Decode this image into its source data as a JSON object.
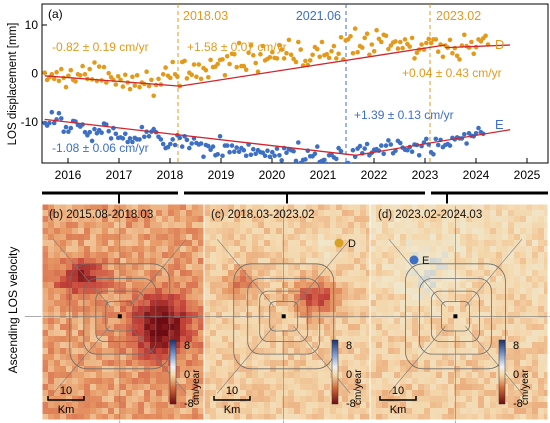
{
  "chart_data": [
    {
      "panel": "(a)",
      "type": "scatter",
      "ylabel": "LOS displacement [mm]",
      "xlim": [
        2015.65,
        2025.0
      ],
      "ylim": [
        -17,
        14
      ],
      "x_ticks": [
        "2016",
        "2017",
        "2018",
        "2019",
        "2020",
        "2021",
        "2022",
        "2023",
        "2024",
        "2025"
      ],
      "y_ticks": [
        "10",
        "0",
        "-10"
      ],
      "grid": false,
      "event_lines": [
        {
          "x": 2018.2,
          "label": "2018.03",
          "color": "#e39a1a"
        },
        {
          "x": 2021.45,
          "label": "2021.06",
          "color": "#3f6fc2"
        },
        {
          "x": 2023.1,
          "label": "2023.02",
          "color": "#e39a1a"
        }
      ],
      "series": [
        {
          "name": "D",
          "color": "#e39a1a",
          "x_start": 2015.7,
          "x_step": 0.0438,
          "values": [
            0.6,
            -0.8,
            -0.3,
            0.3,
            -0.6,
            0.7,
            -1.0,
            1.3,
            -0.4,
            -2.2,
            0.0,
            1.1,
            -0.8,
            -1.1,
            0.3,
            0.1,
            1.9,
            0.3,
            -0.6,
            1.3,
            -0.7,
            2.6,
            -1.0,
            1.8,
            -0.9,
            1.7,
            -1.3,
            0.5,
            -0.3,
            -0.8,
            -1.7,
            -0.1,
            -0.8,
            -2.1,
            0.2,
            -1.3,
            -2.6,
            -0.2,
            -1.9,
            0.1,
            -2.2,
            -1.3,
            -1.6,
            0.8,
            -2.0,
            -0.8,
            -3.9,
            -1.8,
            -0.6,
            -1.7,
            0.3,
            1.6,
            0.0,
            -0.4,
            2.7,
            0.3,
            -0.2,
            -2.0,
            2.7,
            2.9,
            -0.5,
            0.6,
            0.2,
            2.2,
            -0.2,
            2.2,
            -0.6,
            1.5,
            1.1,
            -0.3,
            3.1,
            1.7,
            1.8,
            2.3,
            3.1,
            3.2,
            0.1,
            3.8,
            2.3,
            4.3,
            4.2,
            1.7,
            6.4,
            1.9,
            1.9,
            1.2,
            4.5,
            5.9,
            4.0,
            2.5,
            0.8,
            4.2,
            5.8,
            3.0,
            3.3,
            3.6,
            4.6,
            3.5,
            3.4,
            6.0,
            5.1,
            3.4,
            4.4,
            7.0,
            4.1,
            3.3,
            2.7,
            6.6,
            5.1,
            2.0,
            2.9,
            2.1,
            3.0,
            4.1,
            5.6,
            5.2,
            3.7,
            6.6,
            4.0,
            4.2,
            3.5,
            4.8,
            5.8,
            3.4,
            4.3,
            7.5,
            3.2,
            6.9,
            7.1,
            7.7,
            4.4,
            9.2,
            4.6,
            5.8,
            5.5,
            7.4,
            8.2,
            4.1,
            6.1,
            4.8,
            8.9,
            7.2,
            6.6,
            8.0,
            7.8,
            5.2,
            5.9,
            6.5,
            6.7,
            5.3,
            6.6,
            5.4,
            7.1,
            6.2,
            5.7,
            7.4,
            3.4,
            4.5,
            5.1,
            6.1,
            5.1,
            6.4,
            7.2,
            6.4,
            7.1,
            7.1,
            4.7,
            6.1,
            3.7,
            5.9,
            5.5,
            7.0,
            4.4,
            5.4,
            3.9,
            3.2,
            5.9,
            8.0,
            5.8,
            5.5,
            6.6,
            4.3,
            5.6,
            7.1,
            6.7,
            7.3,
            7.8,
            6.1
          ]
        },
        {
          "name": "E",
          "color": "#3d6fc4",
          "x_start": 2015.7,
          "x_step": 0.0438,
          "values": [
            -9.2,
            -9.7,
            -9.2,
            -7.1,
            -9.2,
            -8.5,
            -7.3,
            -8.3,
            -10.9,
            -10.0,
            -10.9,
            -10.2,
            -8.8,
            -8.9,
            -9.6,
            -9.9,
            -9.5,
            -11.0,
            -11.6,
            -11.0,
            -12.7,
            -10.4,
            -11.2,
            -10.6,
            -11.1,
            -9.3,
            -9.5,
            -10.8,
            -12.2,
            -10.2,
            -11.3,
            -12.1,
            -12.0,
            -12.2,
            -11.3,
            -12.9,
            -12.2,
            -12.9,
            -12.1,
            -12.4,
            -12.4,
            -10.0,
            -11.9,
            -10.9,
            -11.8,
            -10.9,
            -10.4,
            -11.0,
            -11.9,
            -12.4,
            -13.3,
            -14.1,
            -13.9,
            -13.3,
            -12.4,
            -13.5,
            -11.6,
            -12.1,
            -13.8,
            -11.8,
            -12.5,
            -14.1,
            -13.2,
            -12.2,
            -13.1,
            -13.4,
            -13.2,
            -15.8,
            -13.5,
            -13.7,
            -14.4,
            -13.8,
            -15.5,
            -15.3,
            -11.8,
            -15.6,
            -13.6,
            -13.6,
            -14.9,
            -13.6,
            -14.8,
            -14.0,
            -14.8,
            -14.1,
            -14.5,
            -15.6,
            -13.4,
            -15.4,
            -14.3,
            -15.2,
            -14.5,
            -14.9,
            -15.0,
            -15.6,
            -14.6,
            -15.8,
            -14.9,
            -15.6,
            -14.2,
            -15.5,
            -16.5,
            -14.1,
            -15.0,
            -14.3,
            -14.5,
            -14.7,
            -16.6,
            -13.0,
            -17.0,
            -16.4,
            -16.3,
            -14.6,
            -15.7,
            -15.7,
            -15.2,
            -13.8,
            -16.8,
            -16.6,
            -16.4,
            -17.2,
            -15.5,
            -15.4,
            -15.9,
            -16.2,
            -14.1,
            -14.7,
            -17.6,
            -17.2,
            -17.0,
            -17.3,
            -14.5,
            -15.8,
            -14.2,
            -13.7,
            -15.1,
            -14.2,
            -13.3,
            -15.5,
            -15.0,
            -14.4,
            -14.3,
            -14.6,
            -13.6,
            -15.2,
            -13.6,
            -12.6,
            -13.4,
            -15.1,
            -14.6,
            -12.7,
            -13.1,
            -14.0,
            -14.4,
            -14.5,
            -13.9,
            -14.8,
            -13.4,
            -13.5,
            -15.5,
            -13.7,
            -13.0,
            -12.3,
            -13.4,
            -14.9,
            -15.3,
            -12.3,
            -13.5,
            -12.5,
            -13.9,
            -13.5,
            -13.3,
            -13.6,
            -12.1,
            -12.4,
            -12.0,
            -12.2,
            -12.2,
            -11.4,
            -13.2,
            -11.2,
            -11.7,
            -11.8,
            -11.2,
            -10.2,
            -11.0,
            -11.3
          ]
        }
      ],
      "trend_lines": [
        {
          "series": "D",
          "segments": [
            [
              2015.7,
              0.0,
              2018.2,
              -2.0
            ],
            [
              2018.2,
              -2.0,
              2023.1,
              6.0
            ],
            [
              2023.1,
              5.5,
              2024.3,
              6.0
            ]
          ]
        },
        {
          "series": "E",
          "segments": [
            [
              2015.7,
              -8.5,
              2021.45,
              -15.5
            ],
            [
              2021.45,
              -15.5,
              2024.3,
              -10.5
            ]
          ]
        }
      ],
      "annotations": [
        {
          "text": "-0.82 ± 0.19 cm/yr",
          "color": "#e39a1a"
        },
        {
          "text": "+1.58 ± 0.07 cm/yr",
          "color": "#e39a1a"
        },
        {
          "text": "+0.04 ± 0.43 cm/yr",
          "color": "#e39a1a"
        },
        {
          "text": "+1.39 ± 0.13 cm/yr",
          "color": "#3d6fc4"
        },
        {
          "text": "-1.08 ± 0.06 cm/yr",
          "color": "#3d6fc4"
        }
      ],
      "series_labels": [
        "D",
        "E"
      ],
      "panel_label": "(a)"
    },
    {
      "type": "heatmap",
      "panels": [
        {
          "label": "(b) 2015.08-2018.03",
          "point": ""
        },
        {
          "label": "(c) 2018.03-2023.02",
          "point": "D",
          "point_color": "#d9a124"
        },
        {
          "label": "(d) 2023.02-2024.03",
          "point": "E",
          "point_color": "#3d6fc4"
        }
      ],
      "row_label": "Ascending LOS velocity",
      "colorbar": {
        "ticks": [
          "8",
          "0",
          "-8"
        ],
        "unit": "cm/year"
      },
      "scale_bar": {
        "value": "10",
        "unit": "Km"
      },
      "range": [
        -8,
        8
      ]
    }
  ]
}
